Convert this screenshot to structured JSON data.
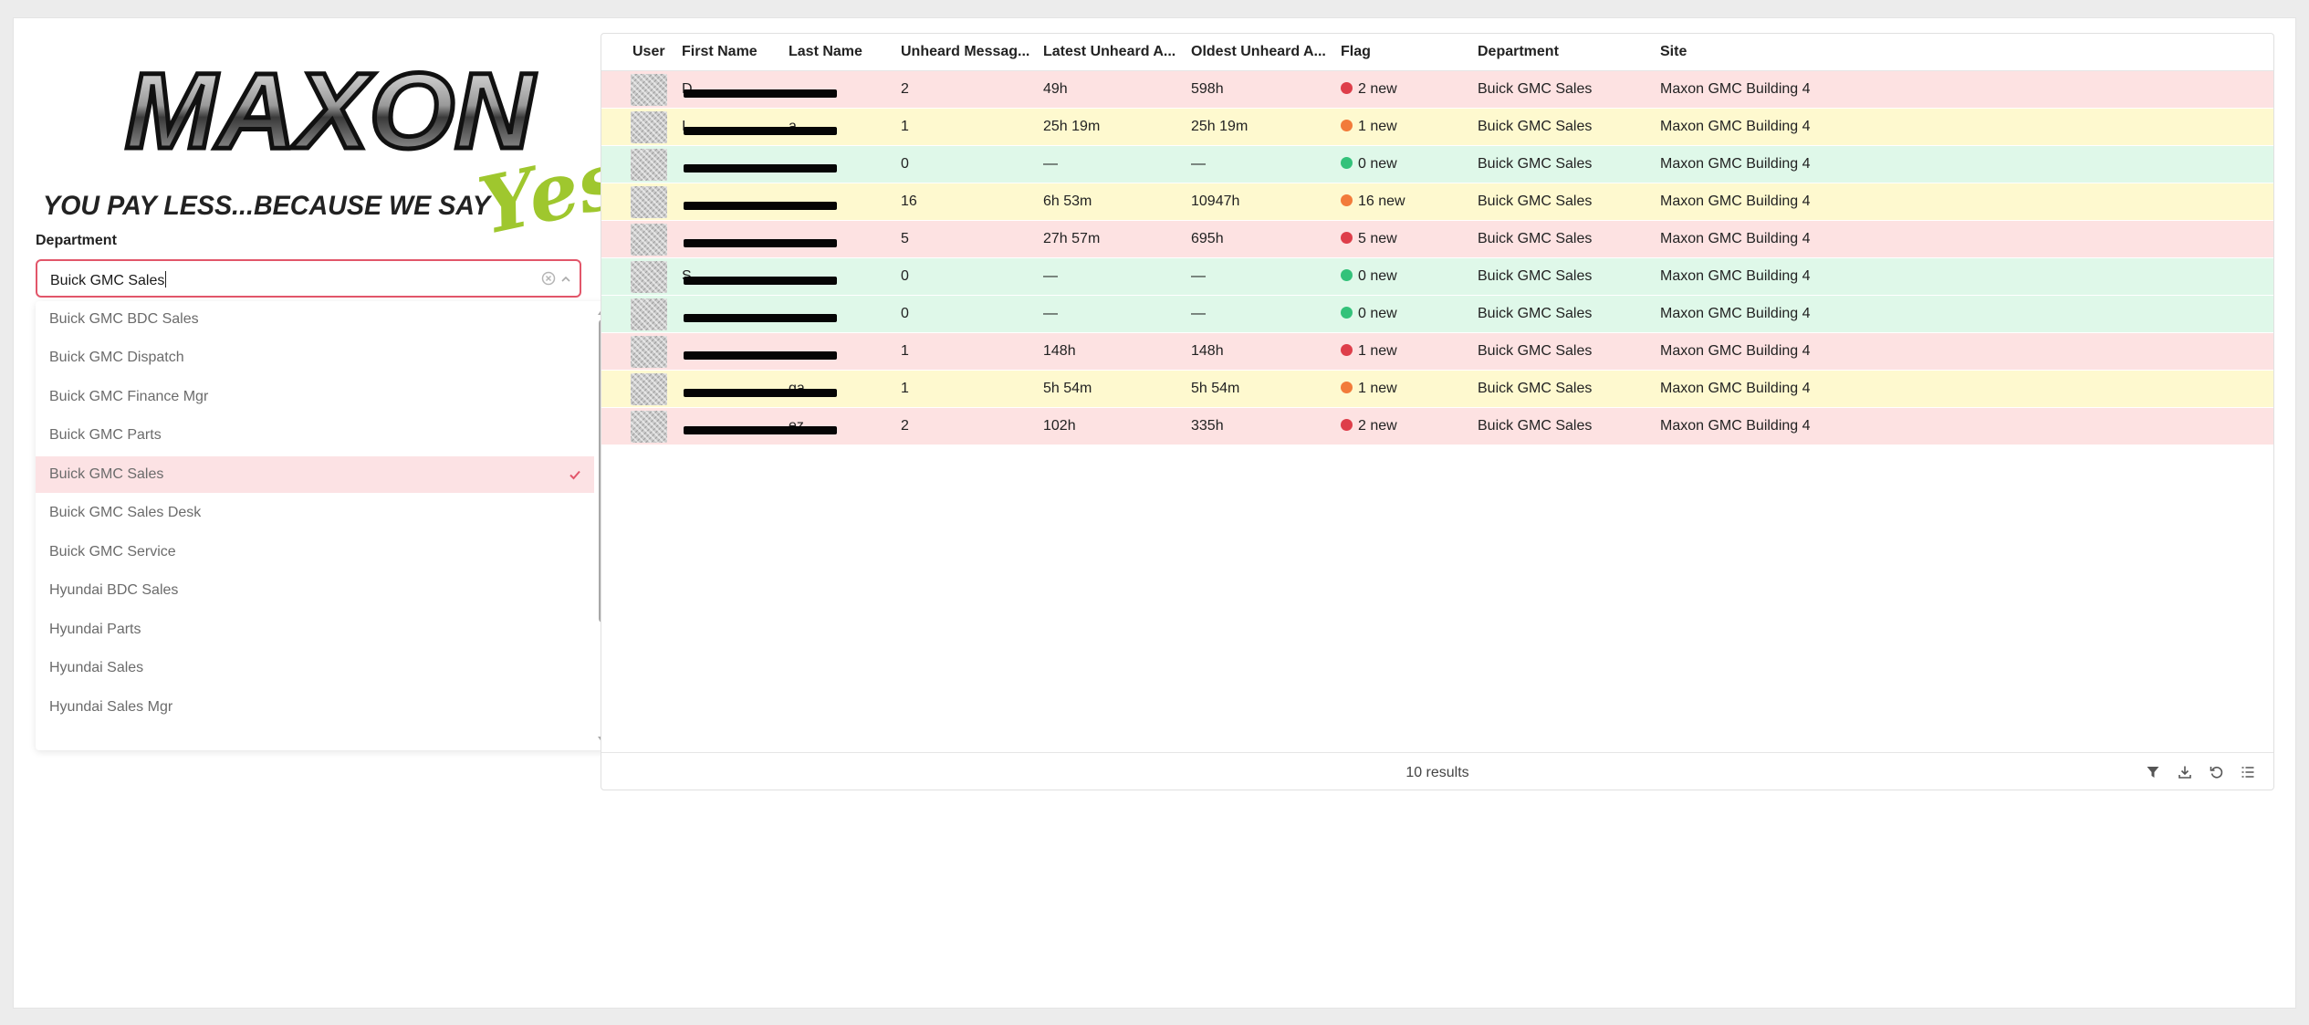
{
  "logo": {
    "brand": "MAXON",
    "tagline": "YOU PAY LESS...BECAUSE WE SAY",
    "script": "Yes!"
  },
  "filter": {
    "label": "Department",
    "value": "Buick GMC Sales",
    "options": [
      "Buick GMC BDC Sales",
      "Buick GMC Dispatch",
      "Buick GMC Finance Mgr",
      "Buick GMC Parts",
      "Buick GMC Sales",
      "Buick GMC Sales Desk",
      "Buick GMC Service",
      "Hyundai BDC Sales",
      "Hyundai Parts",
      "Hyundai Sales",
      "Hyundai Sales Mgr"
    ],
    "selected_index": 4
  },
  "table": {
    "columns": [
      "User",
      "First Name",
      "Last Name",
      "Unheard Messag...",
      "Latest Unheard A...",
      "Oldest Unheard A...",
      "Flag",
      "Department",
      "Site"
    ],
    "rows": [
      {
        "first": "D",
        "last": "",
        "unheard": "2",
        "latest": "49h",
        "oldest": "598h",
        "flag": "2 new",
        "status": "red",
        "department": "Buick GMC Sales",
        "site": "Maxon GMC Building 4"
      },
      {
        "first": "I",
        "last": "a",
        "unheard": "1",
        "latest": "25h 19m",
        "oldest": "25h 19m",
        "flag": "1 new",
        "status": "yellow",
        "department": "Buick GMC Sales",
        "site": "Maxon GMC Building 4"
      },
      {
        "first": "",
        "last": "",
        "unheard": "0",
        "latest": "—",
        "oldest": "—",
        "flag": "0 new",
        "status": "green",
        "department": "Buick GMC Sales",
        "site": "Maxon GMC Building 4"
      },
      {
        "first": "",
        "last": "",
        "unheard": "16",
        "latest": "6h 53m",
        "oldest": "10947h",
        "flag": "16 new",
        "status": "yellow",
        "department": "Buick GMC Sales",
        "site": "Maxon GMC Building 4"
      },
      {
        "first": "",
        "last": "",
        "unheard": "5",
        "latest": "27h 57m",
        "oldest": "695h",
        "flag": "5 new",
        "status": "red",
        "department": "Buick GMC Sales",
        "site": "Maxon GMC Building 4"
      },
      {
        "first": "S",
        "last": "",
        "unheard": "0",
        "latest": "—",
        "oldest": "—",
        "flag": "0 new",
        "status": "green",
        "department": "Buick GMC Sales",
        "site": "Maxon GMC Building 4"
      },
      {
        "first": "",
        "last": "",
        "unheard": "0",
        "latest": "—",
        "oldest": "—",
        "flag": "0 new",
        "status": "green",
        "department": "Buick GMC Sales",
        "site": "Maxon GMC Building 4"
      },
      {
        "first": "",
        "last": "",
        "unheard": "1",
        "latest": "148h",
        "oldest": "148h",
        "flag": "1 new",
        "status": "red",
        "department": "Buick GMC Sales",
        "site": "Maxon GMC Building 4"
      },
      {
        "first": "",
        "last": "ga",
        "unheard": "1",
        "latest": "5h 54m",
        "oldest": "5h 54m",
        "flag": "1 new",
        "status": "yellow",
        "department": "Buick GMC Sales",
        "site": "Maxon GMC Building 4"
      },
      {
        "first": "",
        "last": "ez",
        "unheard": "2",
        "latest": "102h",
        "oldest": "335h",
        "flag": "2 new",
        "status": "red",
        "department": "Buick GMC Sales",
        "site": "Maxon GMC Building 4"
      }
    ],
    "results_text": "10 results"
  },
  "colors": {
    "accent": "#e2566a",
    "row_red": "#fde2e2",
    "row_yellow": "#fef9cf",
    "row_green": "#dff8e9",
    "flag_red": "#de3e4a",
    "flag_orange": "#f27b3a",
    "flag_green": "#33c27a"
  },
  "icons": {
    "footer": [
      "filter-icon",
      "download-icon",
      "refresh-icon",
      "column-list-icon"
    ]
  }
}
